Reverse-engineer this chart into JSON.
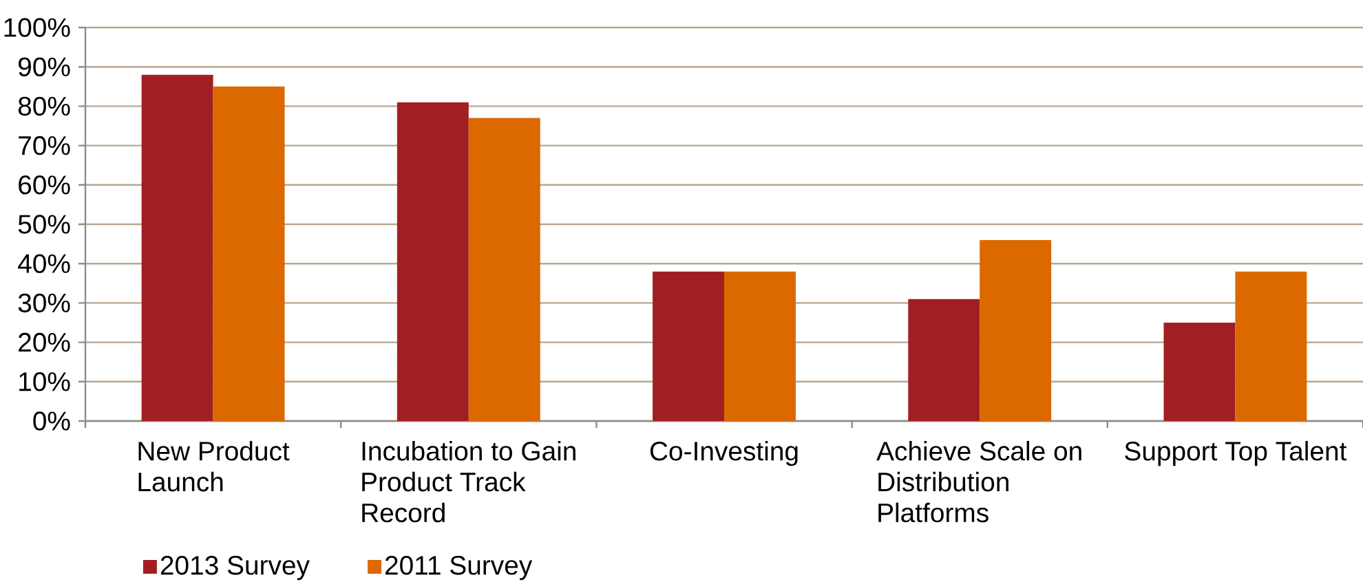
{
  "chart_data": {
    "type": "bar",
    "categories": [
      "New Product Launch",
      "Incubation to Gain Product Track Record",
      "Co-Investing",
      "Achieve Scale on Distribution Platforms",
      "Support Top Talent"
    ],
    "series": [
      {
        "name": "2013 Survey",
        "color": "#a01f22",
        "values": [
          88,
          81,
          38,
          31,
          25
        ]
      },
      {
        "name": "2011 Survey",
        "color": "#db6900",
        "values": [
          85,
          77,
          38,
          46,
          38
        ]
      }
    ],
    "ylim": [
      0,
      100
    ],
    "yticks": [
      {
        "value": 0,
        "label": "0%"
      },
      {
        "value": 10,
        "label": "10%"
      },
      {
        "value": 20,
        "label": "20%"
      },
      {
        "value": 30,
        "label": "30%"
      },
      {
        "value": 40,
        "label": "40%"
      },
      {
        "value": 50,
        "label": "50%"
      },
      {
        "value": 60,
        "label": "60%"
      },
      {
        "value": 70,
        "label": "70%"
      },
      {
        "value": 80,
        "label": "80%"
      },
      {
        "value": 90,
        "label": "90%"
      },
      {
        "value": 100,
        "label": "100%"
      }
    ],
    "grid": "y",
    "legend": "bottom left"
  }
}
